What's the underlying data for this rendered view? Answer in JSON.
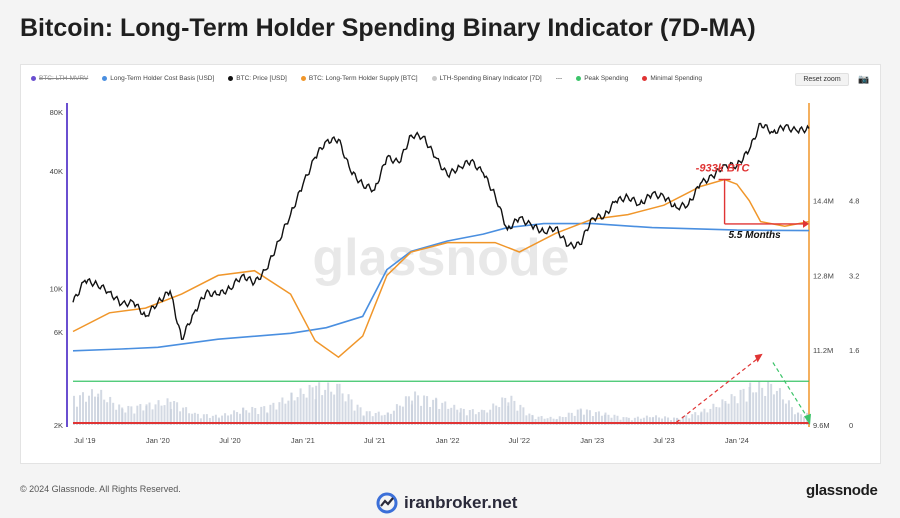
{
  "title": "Bitcoin: Long-Term Holder Spending Binary Indicator (7D-MA)",
  "legend": [
    {
      "label": "BTC: LTH-MVRV",
      "color": "#6a4fd0",
      "hidden": true
    },
    {
      "label": "Long-Term Holder Cost Basis [USD]",
      "color": "#4a8fe0",
      "hidden": false
    },
    {
      "label": "BTC: Price [USD]",
      "color": "#111111",
      "hidden": false
    },
    {
      "label": "BTC: Long-Term Holder Supply [BTC]",
      "color": "#f0962a",
      "hidden": false
    },
    {
      "label": "LTH-Spending Binary Indicator [7D]",
      "color": "#c8c8c8",
      "hidden": false
    },
    {
      "label": "---",
      "color": "",
      "hidden": false
    },
    {
      "label": "Peak Spending",
      "color": "#3cc46a",
      "hidden": false
    },
    {
      "label": "Minimal Spending",
      "color": "#e03434",
      "hidden": false
    }
  ],
  "reset_zoom_label": "Reset zoom",
  "camera_icon": "camera-icon",
  "annotations": {
    "drop_label": "-933k BTC",
    "duration_label": "5.5 Months",
    "watermark": "glassnode"
  },
  "footer": {
    "copyright": "© 2024 Glassnode. All Rights Reserved.",
    "brand_left": "iranbroker.net",
    "brand_right": "glassnode"
  },
  "chart_data": {
    "type": "line",
    "x_ticks": [
      "Jul '19",
      "Jan '20",
      "Jul '20",
      "Jan '21",
      "Jul '21",
      "Jan '22",
      "Jul '22",
      "Jan '23",
      "Jul '23",
      "Jan '24"
    ],
    "y_left": {
      "scale": "log",
      "ticks": [
        "2K",
        "6K",
        "10K",
        "40K",
        "80K"
      ],
      "tick_values": [
        2000,
        6000,
        10000,
        40000,
        80000
      ],
      "range": [
        2000,
        85000
      ]
    },
    "y_supply": {
      "ticks": [
        "9.6M",
        "11.2M",
        "12.8M",
        "14.4M"
      ],
      "tick_values": [
        9.6,
        11.2,
        12.8,
        14.4
      ],
      "range": [
        9.6,
        16.4
      ],
      "unit": "M BTC"
    },
    "y_mvrv": {
      "ticks": [
        "0",
        "1.6",
        "3.2",
        "4.8"
      ],
      "tick_values": [
        0,
        1.6,
        3.2,
        4.8
      ]
    },
    "peak_spending_level": 0.35,
    "minimal_spending_level": 0.0,
    "series": [
      {
        "name": "BTC: Price [USD]",
        "color": "#111111",
        "points": [
          [
            "2019-06",
            8500
          ],
          [
            "2019-07",
            11000
          ],
          [
            "2019-08",
            10500
          ],
          [
            "2019-09",
            9600
          ],
          [
            "2019-10",
            8300
          ],
          [
            "2019-11",
            8500
          ],
          [
            "2019-12",
            7200
          ],
          [
            "2020-01",
            8500
          ],
          [
            "2020-02",
            9700
          ],
          [
            "2020-03",
            5500
          ],
          [
            "2020-04",
            7500
          ],
          [
            "2020-05",
            9500
          ],
          [
            "2020-06",
            9300
          ],
          [
            "2020-07",
            10000
          ],
          [
            "2020-08",
            11700
          ],
          [
            "2020-09",
            10700
          ],
          [
            "2020-10",
            12500
          ],
          [
            "2020-11",
            17500
          ],
          [
            "2020-12",
            24000
          ],
          [
            "2021-01",
            34000
          ],
          [
            "2021-02",
            47000
          ],
          [
            "2021-03",
            57000
          ],
          [
            "2021-04",
            58000
          ],
          [
            "2021-05",
            40000
          ],
          [
            "2021-06",
            34000
          ],
          [
            "2021-07",
            32000
          ],
          [
            "2021-08",
            47000
          ],
          [
            "2021-09",
            44000
          ],
          [
            "2021-10",
            61000
          ],
          [
            "2021-11",
            60000
          ],
          [
            "2021-12",
            47000
          ],
          [
            "2022-01",
            38000
          ],
          [
            "2022-02",
            42000
          ],
          [
            "2022-03",
            45000
          ],
          [
            "2022-04",
            39000
          ],
          [
            "2022-05",
            30000
          ],
          [
            "2022-06",
            20000
          ],
          [
            "2022-07",
            23000
          ],
          [
            "2022-08",
            21000
          ],
          [
            "2022-09",
            19500
          ],
          [
            "2022-10",
            20500
          ],
          [
            "2022-11",
            16500
          ],
          [
            "2022-12",
            16800
          ],
          [
            "2023-01",
            23000
          ],
          [
            "2023-02",
            23500
          ],
          [
            "2023-03",
            28000
          ],
          [
            "2023-04",
            29500
          ],
          [
            "2023-05",
            27000
          ],
          [
            "2023-06",
            30500
          ],
          [
            "2023-07",
            29500
          ],
          [
            "2023-08",
            26000
          ],
          [
            "2023-09",
            27000
          ],
          [
            "2023-10",
            34500
          ],
          [
            "2023-11",
            37500
          ],
          [
            "2023-12",
            43000
          ],
          [
            "2024-01",
            42500
          ],
          [
            "2024-02",
            51000
          ],
          [
            "2024-03",
            70000
          ],
          [
            "2024-04",
            63000
          ],
          [
            "2024-05",
            67500
          ],
          [
            "2024-06",
            64000
          ],
          [
            "2024-07",
            66000
          ]
        ]
      },
      {
        "name": "Long-Term Holder Cost Basis [USD]",
        "color": "#4a8fe0",
        "points": [
          [
            "2019-06",
            4800
          ],
          [
            "2019-10",
            4900
          ],
          [
            "2020-01",
            5000
          ],
          [
            "2020-06",
            5500
          ],
          [
            "2020-12",
            5900
          ],
          [
            "2021-03",
            6300
          ],
          [
            "2021-06",
            7200
          ],
          [
            "2021-08",
            12500
          ],
          [
            "2021-10",
            15500
          ],
          [
            "2022-01",
            17500
          ],
          [
            "2022-04",
            19000
          ],
          [
            "2022-06",
            20500
          ],
          [
            "2022-09",
            21500
          ],
          [
            "2023-01",
            21500
          ],
          [
            "2023-06",
            20500
          ],
          [
            "2024-01",
            19900
          ],
          [
            "2024-07",
            19800
          ]
        ]
      },
      {
        "name": "BTC: Long-Term Holder Supply [BTC]",
        "color": "#f0962a",
        "points": [
          [
            "2019-06",
            11.6
          ],
          [
            "2019-09",
            12.0
          ],
          [
            "2019-12",
            12.1
          ],
          [
            "2020-03",
            12.4
          ],
          [
            "2020-06",
            12.8
          ],
          [
            "2020-09",
            12.9
          ],
          [
            "2020-12",
            12.4
          ],
          [
            "2021-02",
            11.4
          ],
          [
            "2021-04",
            11.05
          ],
          [
            "2021-06",
            11.5
          ],
          [
            "2021-08",
            12.8
          ],
          [
            "2021-10",
            13.3
          ],
          [
            "2022-01",
            13.5
          ],
          [
            "2022-05",
            13.5
          ],
          [
            "2022-07",
            13.3
          ],
          [
            "2022-10",
            13.7
          ],
          [
            "2023-01",
            14.0
          ],
          [
            "2023-04",
            14.1
          ],
          [
            "2023-07",
            14.3
          ],
          [
            "2023-10",
            14.7
          ],
          [
            "2023-12",
            14.85
          ],
          [
            "2024-01",
            14.75
          ],
          [
            "2024-02",
            14.4
          ],
          [
            "2024-03",
            13.95
          ],
          [
            "2024-05",
            13.85
          ],
          [
            "2024-07",
            13.95
          ]
        ]
      },
      {
        "name": "LTH-Spending Binary Indicator [7D]",
        "color": "#c8c8c8",
        "type": "bar",
        "points": [
          [
            "2019-06",
            0.25
          ],
          [
            "2019-08",
            0.3
          ],
          [
            "2019-10",
            0.15
          ],
          [
            "2019-12",
            0.18
          ],
          [
            "2020-02",
            0.22
          ],
          [
            "2020-04",
            0.1
          ],
          [
            "2020-06",
            0.08
          ],
          [
            "2020-08",
            0.14
          ],
          [
            "2020-10",
            0.16
          ],
          [
            "2020-12",
            0.26
          ],
          [
            "2021-02",
            0.35
          ],
          [
            "2021-04",
            0.33
          ],
          [
            "2021-06",
            0.12
          ],
          [
            "2021-08",
            0.1
          ],
          [
            "2021-10",
            0.28
          ],
          [
            "2021-12",
            0.22
          ],
          [
            "2022-02",
            0.14
          ],
          [
            "2022-04",
            0.12
          ],
          [
            "2022-06",
            0.26
          ],
          [
            "2022-08",
            0.08
          ],
          [
            "2022-10",
            0.06
          ],
          [
            "2022-12",
            0.14
          ],
          [
            "2023-02",
            0.1
          ],
          [
            "2023-04",
            0.06
          ],
          [
            "2023-06",
            0.08
          ],
          [
            "2023-08",
            0.06
          ],
          [
            "2023-10",
            0.12
          ],
          [
            "2023-12",
            0.22
          ],
          [
            "2024-02",
            0.34
          ],
          [
            "2024-04",
            0.36
          ],
          [
            "2024-06",
            0.1
          ]
        ]
      }
    ]
  }
}
